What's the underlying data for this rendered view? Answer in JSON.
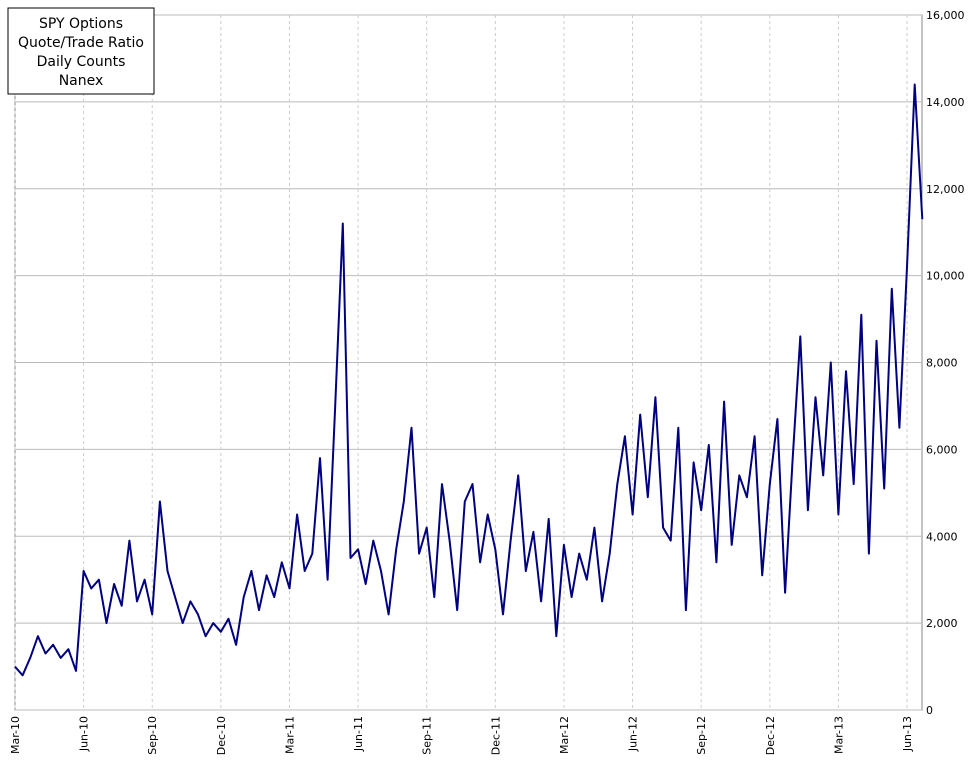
{
  "chart_data": {
    "type": "line",
    "title": [
      "SPY Options",
      "Quote/Trade Ratio",
      "Daily Counts",
      "Nanex"
    ],
    "categories": [
      "Mar-10",
      null,
      null,
      null,
      null,
      null,
      null,
      null,
      null,
      "Jun-10",
      null,
      null,
      null,
      null,
      null,
      null,
      null,
      null,
      "Sep-10",
      null,
      null,
      null,
      null,
      null,
      null,
      null,
      null,
      "Dec-10",
      null,
      null,
      null,
      null,
      null,
      null,
      null,
      null,
      "Mar-11",
      null,
      null,
      null,
      null,
      null,
      null,
      null,
      null,
      "Jun-11",
      null,
      null,
      null,
      null,
      null,
      null,
      null,
      null,
      "Sep-11",
      null,
      null,
      null,
      null,
      null,
      null,
      null,
      null,
      "Dec-11",
      null,
      null,
      null,
      null,
      null,
      null,
      null,
      null,
      "Mar-12",
      null,
      null,
      null,
      null,
      null,
      null,
      null,
      null,
      "Jun-12",
      null,
      null,
      null,
      null,
      null,
      null,
      null,
      null,
      "Sep-12",
      null,
      null,
      null,
      null,
      null,
      null,
      null,
      null,
      "Dec-12",
      null,
      null,
      null,
      null,
      null,
      null,
      null,
      null,
      "Mar-13",
      null,
      null,
      null,
      null,
      null,
      null,
      null,
      null,
      "Jun-13",
      null,
      null
    ],
    "series": [
      {
        "color": "#000080",
        "values": [
          1000,
          800,
          1200,
          1700,
          1300,
          1500,
          1200,
          1400,
          900,
          3200,
          2800,
          3000,
          2000,
          2900,
          2400,
          3900,
          2500,
          3000,
          2200,
          4800,
          3200,
          2600,
          2000,
          2500,
          2200,
          1700,
          2000,
          1800,
          2100,
          1500,
          2600,
          3200,
          2300,
          3100,
          2600,
          3400,
          2800,
          4500,
          3200,
          3600,
          5800,
          3000,
          7000,
          11200,
          3500,
          3700,
          2900,
          3900,
          3200,
          2200,
          3700,
          4800,
          6500,
          3600,
          4200,
          2600,
          5200,
          3900,
          2300,
          4800,
          5200,
          3400,
          4500,
          3700,
          2200,
          3900,
          5400,
          3200,
          4100,
          2500,
          4400,
          1700,
          3800,
          2600,
          3600,
          3000,
          4200,
          2500,
          3600,
          5200,
          6300,
          4500,
          6800,
          4900,
          7200,
          4200,
          3900,
          6500,
          2300,
          5700,
          4600,
          6100,
          3400,
          7100,
          3800,
          5400,
          4900,
          6300,
          3100,
          5200,
          6700,
          2700,
          5800,
          8600,
          4600,
          7200,
          5400,
          8000,
          4500,
          7800,
          5200,
          9100,
          3600,
          8500,
          5100,
          9700,
          6500,
          10200,
          14400,
          11300
        ]
      }
    ],
    "ylim": [
      0,
      16000
    ],
    "yticks": [
      0,
      {
        "value": 2000,
        "label": "2,000"
      },
      {
        "value": 4000,
        "label": "4,000"
      },
      {
        "value": 6000,
        "label": "6,000"
      },
      {
        "value": 8000,
        "label": "8,000"
      },
      {
        "value": 10000,
        "label": "10,000"
      },
      {
        "value": 12000,
        "label": "12,000"
      },
      {
        "value": 14000,
        "label": "14,000"
      },
      {
        "value": 16000,
        "label": "16,000"
      }
    ],
    "grid": true
  }
}
